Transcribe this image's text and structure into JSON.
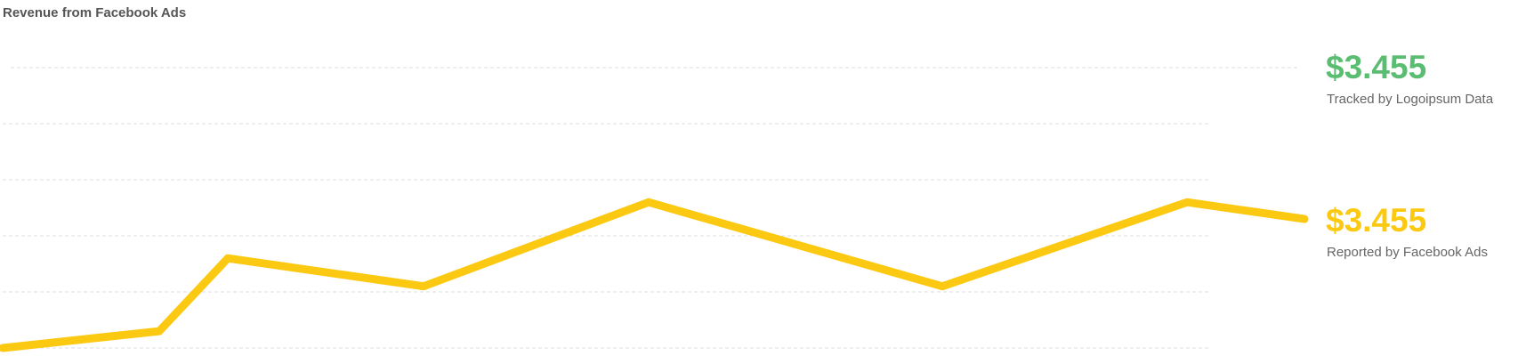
{
  "chart_data": {
    "type": "line",
    "title": "Revenue from Facebook Ads",
    "x": [
      0,
      16,
      23,
      43,
      66,
      96,
      121,
      133
    ],
    "xlim": [
      0,
      133
    ],
    "ylim": [
      0,
      5
    ],
    "yticks": [
      0,
      1,
      2,
      3,
      4,
      5
    ],
    "grid": true,
    "series": [
      {
        "name": "Reported by Facebook Ads",
        "color": "#fcc912",
        "values": [
          0,
          0.3,
          1.6,
          1.1,
          2.6,
          1.1,
          2.6,
          2.3
        ]
      }
    ],
    "summaries": [
      {
        "value": "$3.455",
        "label": "Tracked by Logoipsum Data",
        "color": "#5bbd72"
      },
      {
        "value": "$3.455",
        "label": "Reported by Facebook Ads",
        "color": "#fcc912"
      }
    ]
  }
}
